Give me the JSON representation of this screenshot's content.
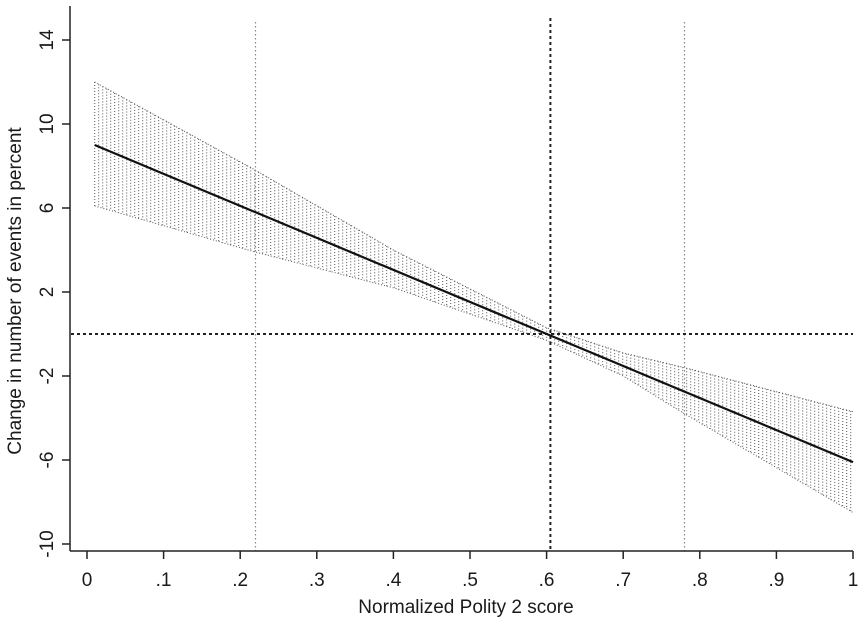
{
  "chart_data": {
    "type": "line",
    "title": "",
    "xlabel": "Normalized Polity 2 score",
    "ylabel": "Change in number of events in percent",
    "xlim": [
      0,
      1
    ],
    "ylim": [
      -10,
      16
    ],
    "x_ticks": [
      0,
      0.1,
      0.2,
      0.3,
      0.4,
      0.5,
      0.6,
      0.7,
      0.8,
      0.9,
      1
    ],
    "x_tick_labels": [
      "0",
      ".1",
      ".2",
      ".3",
      ".4",
      ".5",
      ".6",
      ".7",
      ".8",
      ".9",
      "1"
    ],
    "y_ticks": [
      14,
      10,
      6,
      2,
      -2,
      -6,
      -10
    ],
    "y_tick_labels": [
      "14",
      "10",
      "6",
      "2",
      "-2",
      "-6",
      "-10"
    ],
    "grid": false,
    "series": [
      {
        "x": [
          0.01,
          1.0
        ],
        "y": [
          9.0,
          -6.1
        ],
        "color": "#111111"
      }
    ],
    "confidence_band": {
      "x": [
        0.01,
        0.22,
        0.4,
        0.6,
        0.7,
        0.78,
        1.0
      ],
      "lower": [
        6.1,
        3.9,
        2.2,
        -0.3,
        -2.0,
        -3.8,
        -8.5
      ],
      "upper": [
        12.0,
        7.8,
        4.0,
        0.3,
        -0.9,
        -1.6,
        -3.7
      ],
      "color": "#555555"
    },
    "reference_lines": {
      "horizontal_y": 0,
      "vertical_x": 0.605,
      "dotted_vertical_x": [
        0.22,
        0.78
      ]
    }
  }
}
